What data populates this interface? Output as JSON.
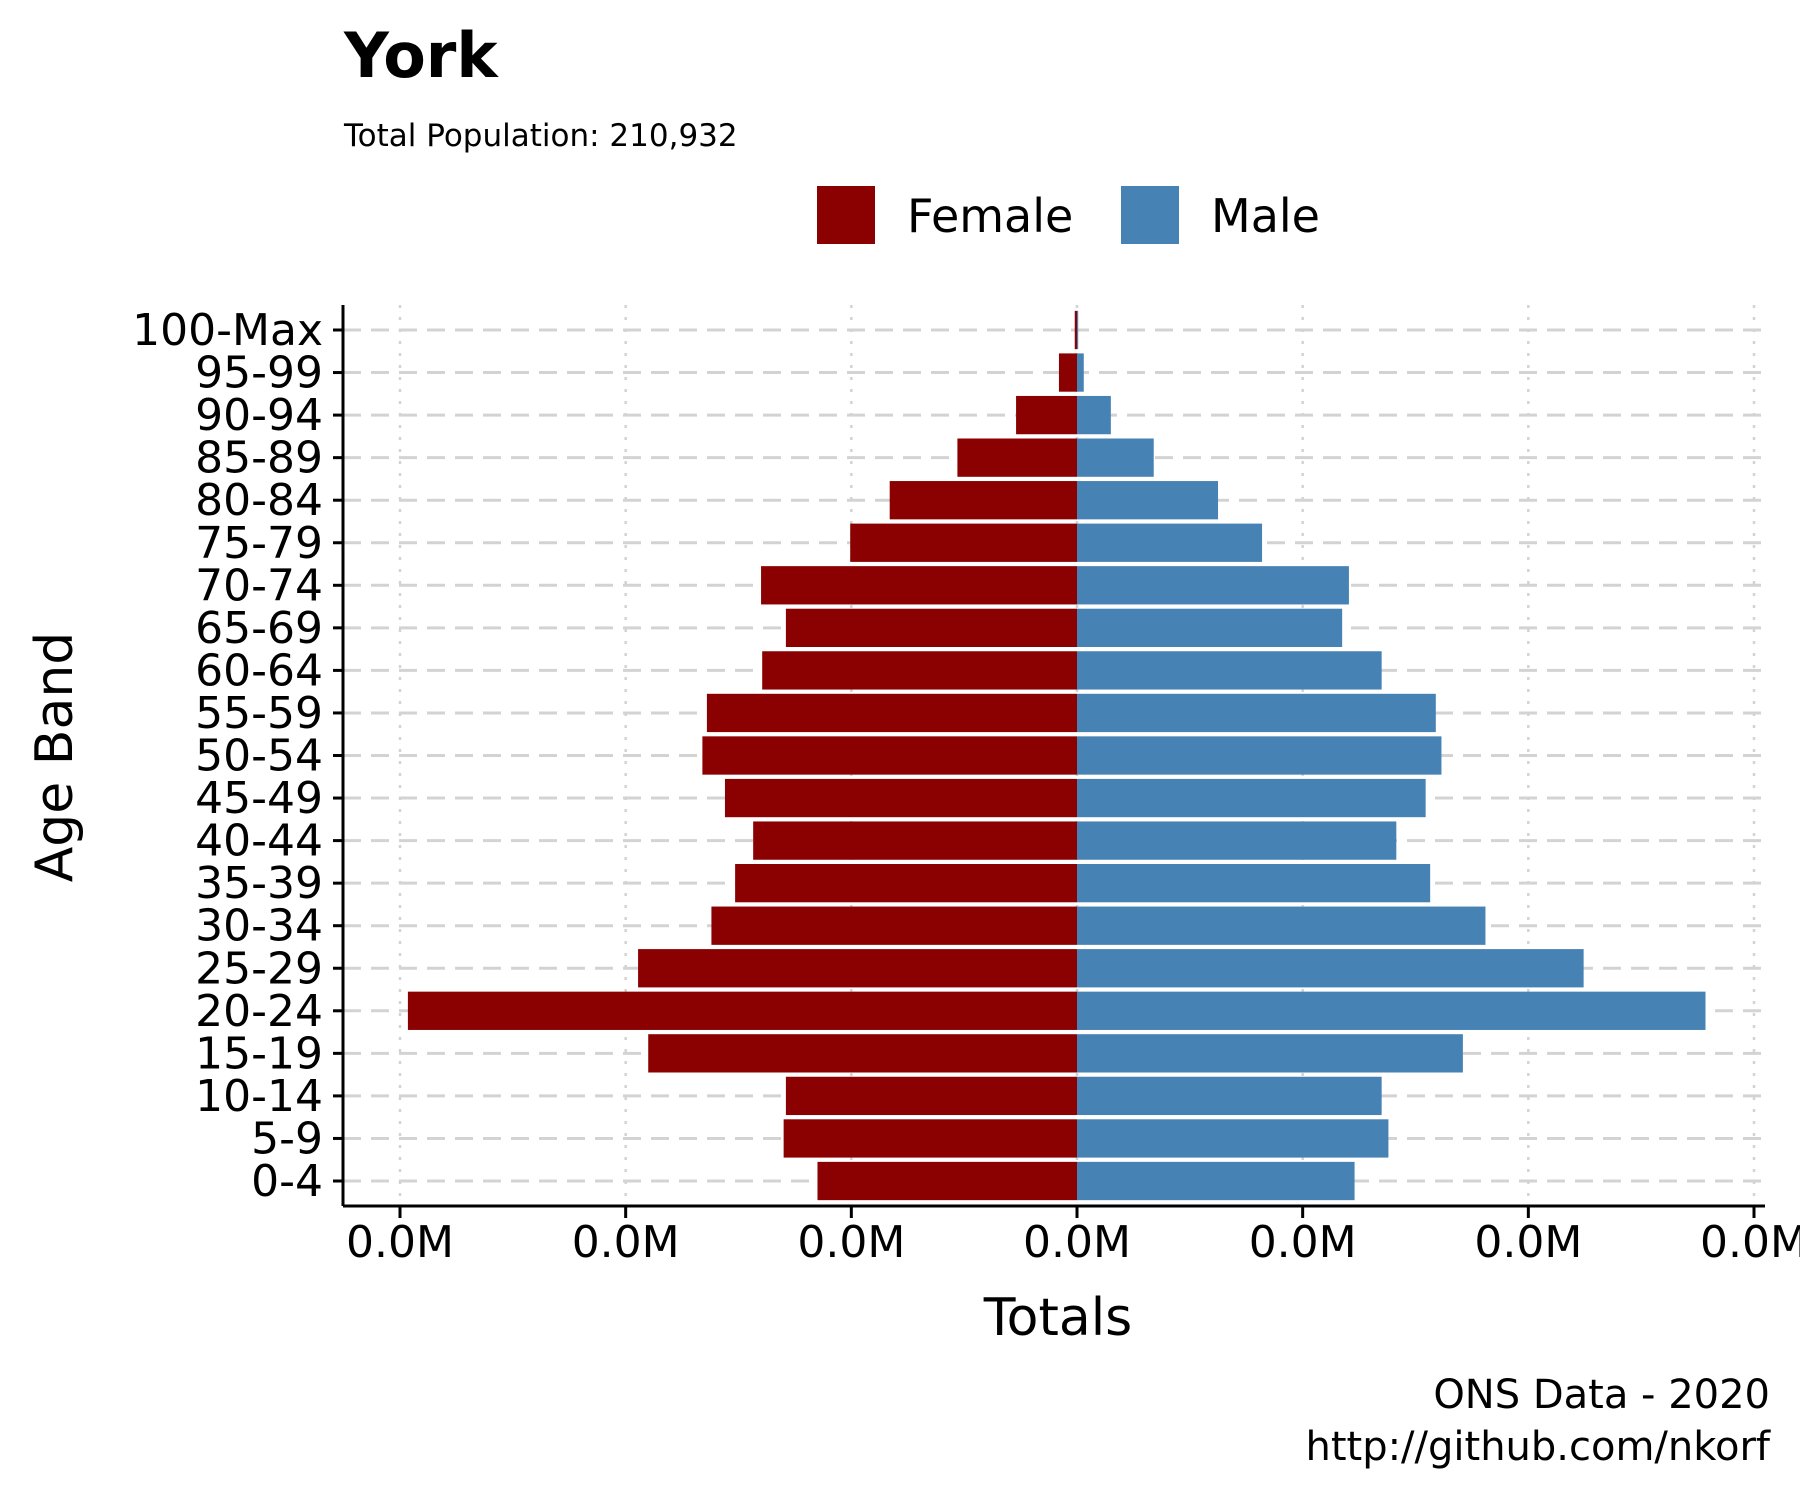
{
  "chart_data": {
    "type": "bar",
    "orientation": "horizontal",
    "title": "York",
    "subtitle": "Total Population:  210,932",
    "xlabel": "Totals",
    "ylabel": "Age Band",
    "caption_line1": "ONS Data - 2020",
    "caption_line2": "http://github.com/nkorf",
    "legend_position": "top",
    "grid": true,
    "xlim": [
      -0.006,
      0.006
    ],
    "x_ticks": [
      -0.006,
      -0.004,
      -0.002,
      0,
      0.002,
      0.004,
      0.006
    ],
    "x_tick_labels": [
      "0.0M",
      "0.0M",
      "0.0M",
      "0.0M",
      "0.0M",
      "0.0M",
      "0.0M"
    ],
    "categories": [
      "0-4",
      "5-9",
      "10-14",
      "15-19",
      "20-24",
      "25-29",
      "30-34",
      "35-39",
      "40-44",
      "45-49",
      "50-54",
      "55-59",
      "60-64",
      "65-69",
      "70-74",
      "75-79",
      "80-84",
      "85-89",
      "90-94",
      "95-99",
      "100-Max"
    ],
    "series": [
      {
        "name": "Female",
        "color": "#8B0000",
        "values": [
          -0.0023,
          -0.0026,
          -0.00258,
          -0.0038,
          -0.00593,
          -0.00389,
          -0.00324,
          -0.00303,
          -0.00287,
          -0.00312,
          -0.00332,
          -0.00328,
          -0.00279,
          -0.00258,
          -0.0028,
          -0.00201,
          -0.00166,
          -0.00106,
          -0.00054,
          -0.00016,
          -2e-05
        ]
      },
      {
        "name": "Male",
        "color": "#4682B4",
        "values": [
          0.00246,
          0.00276,
          0.0027,
          0.00342,
          0.00557,
          0.00449,
          0.00362,
          0.00313,
          0.00283,
          0.00309,
          0.00323,
          0.00318,
          0.0027,
          0.00235,
          0.00241,
          0.00164,
          0.00125,
          0.00068,
          0.0003,
          6e-05,
          1e-05
        ]
      }
    ]
  }
}
